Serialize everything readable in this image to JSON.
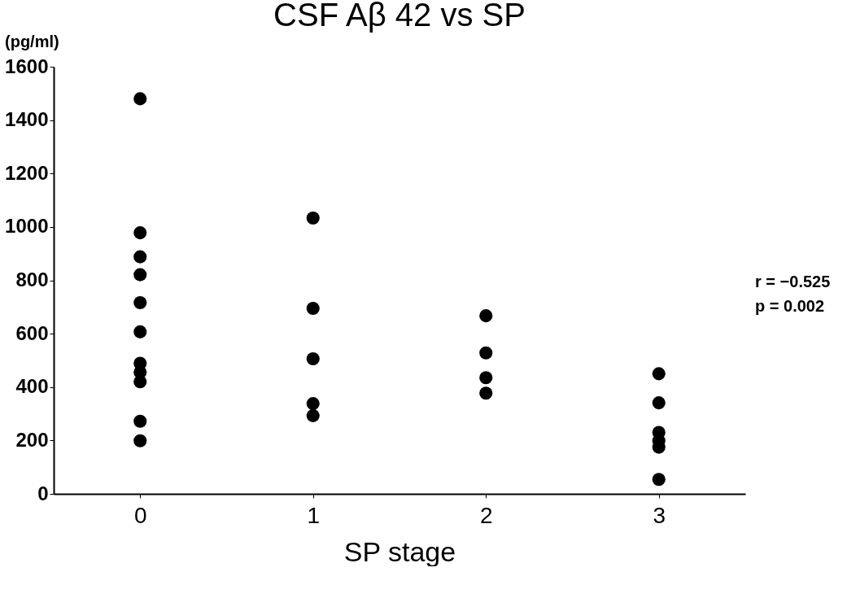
{
  "chart_data": {
    "type": "scatter",
    "title": "CSF Aβ 42 vs SP",
    "xlabel": "SP stage",
    "ylabel": "(pg/ml)",
    "x": [
      0,
      0,
      0,
      0,
      0,
      0,
      0,
      0,
      0,
      0,
      0,
      1,
      1,
      1,
      1,
      1,
      2,
      2,
      2,
      2,
      3,
      3,
      3,
      3,
      3,
      3
    ],
    "values": [
      1480,
      978,
      888,
      821,
      716,
      607,
      489,
      456,
      420,
      272,
      199,
      1033,
      695,
      506,
      338,
      293,
      667,
      528,
      435,
      377,
      450,
      341,
      230,
      199,
      175,
      54
    ],
    "color": "#000000",
    "marker": "circle",
    "xlim": [
      -0.5,
      3.5
    ],
    "xticks": [
      0,
      1,
      2,
      3
    ],
    "ylim": [
      0,
      1600
    ],
    "yticks": [
      0,
      200,
      400,
      600,
      800,
      1000,
      1200,
      1400,
      1600
    ],
    "grid": false,
    "annotations": [
      "r = −0.525",
      "p = 0.002"
    ]
  }
}
